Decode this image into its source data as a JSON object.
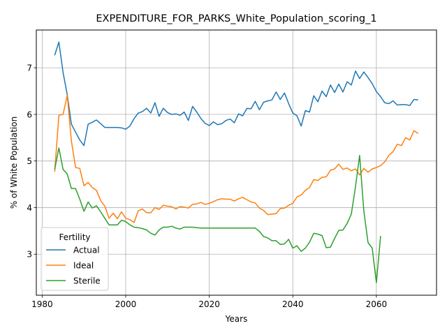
{
  "chart_data": {
    "type": "line",
    "title": "EXPENDITURE_FOR_PARKS_White_Population_scoring_1",
    "xlabel": "Years",
    "ylabel": "% of White Population",
    "xlim": [
      1978.6,
      2074.4
    ],
    "ylim": [
      2.12,
      7.81
    ],
    "x_ticks": [
      1980,
      2000,
      2020,
      2040,
      2060
    ],
    "y_ticks": [
      3,
      4,
      5,
      6,
      7
    ],
    "grid": true,
    "legend": {
      "title": "Fertility",
      "placement": "lower-left"
    },
    "series": [
      {
        "name": "Actual",
        "color": "#1f77b4",
        "x": [
          1983,
          1984,
          1985,
          1986,
          1987,
          1988,
          1989,
          1990,
          1991,
          1992,
          1993,
          1994,
          1995,
          1996,
          1997,
          1998,
          1999,
          2000,
          2001,
          2002,
          2003,
          2004,
          2005,
          2006,
          2007,
          2008,
          2009,
          2010,
          2011,
          2012,
          2013,
          2014,
          2015,
          2016,
          2017,
          2018,
          2019,
          2020,
          2021,
          2022,
          2023,
          2024,
          2025,
          2026,
          2027,
          2028,
          2029,
          2030,
          2031,
          2032,
          2033,
          2034,
          2035,
          2036,
          2037,
          2038,
          2039,
          2040,
          2041,
          2042,
          2043,
          2044,
          2045,
          2046,
          2047,
          2048,
          2049,
          2050,
          2051,
          2052,
          2053,
          2054,
          2055,
          2056,
          2057,
          2058,
          2059,
          2060,
          2061,
          2062,
          2063,
          2064,
          2065,
          2066,
          2067,
          2068,
          2069,
          2070
        ],
        "y": [
          7.27,
          7.55,
          6.9,
          6.42,
          5.79,
          5.62,
          5.45,
          5.33,
          5.79,
          5.83,
          5.88,
          5.8,
          5.72,
          5.72,
          5.72,
          5.72,
          5.71,
          5.68,
          5.75,
          5.91,
          6.03,
          6.06,
          6.13,
          6.03,
          6.25,
          5.96,
          6.13,
          6.04,
          6.0,
          6.01,
          5.98,
          6.05,
          5.87,
          6.17,
          6.05,
          5.91,
          5.81,
          5.76,
          5.84,
          5.78,
          5.8,
          5.87,
          5.9,
          5.82,
          6.01,
          5.97,
          6.13,
          6.12,
          6.28,
          6.1,
          6.26,
          6.29,
          6.31,
          6.48,
          6.32,
          6.46,
          6.23,
          6.03,
          5.97,
          5.75,
          6.08,
          6.05,
          6.4,
          6.27,
          6.5,
          6.38,
          6.63,
          6.47,
          6.65,
          6.48,
          6.7,
          6.63,
          6.93,
          6.77,
          6.91,
          6.79,
          6.66,
          6.49,
          6.38,
          6.25,
          6.23,
          6.29,
          6.2,
          6.21,
          6.21,
          6.19,
          6.32,
          6.31
        ]
      },
      {
        "name": "Ideal",
        "color": "#ff7f0e",
        "x": [
          1983,
          1984,
          1985,
          1986,
          1987,
          1988,
          1989,
          1990,
          1991,
          1992,
          1993,
          1994,
          1995,
          1996,
          1997,
          1998,
          1999,
          2000,
          2001,
          2002,
          2003,
          2004,
          2005,
          2006,
          2007,
          2008,
          2009,
          2010,
          2011,
          2012,
          2013,
          2014,
          2015,
          2016,
          2017,
          2018,
          2019,
          2020,
          2021,
          2022,
          2023,
          2024,
          2025,
          2026,
          2027,
          2028,
          2029,
          2030,
          2031,
          2032,
          2033,
          2034,
          2035,
          2036,
          2037,
          2038,
          2039,
          2040,
          2041,
          2042,
          2043,
          2044,
          2045,
          2046,
          2047,
          2048,
          2049,
          2050,
          2051,
          2052,
          2053,
          2054,
          2055,
          2056,
          2057,
          2058,
          2059,
          2060,
          2061,
          2062,
          2063,
          2064,
          2065,
          2066,
          2067,
          2068,
          2069,
          2070
        ],
        "y": [
          4.77,
          5.98,
          6.0,
          6.41,
          5.43,
          4.86,
          4.84,
          4.47,
          4.54,
          4.43,
          4.37,
          4.15,
          4.03,
          3.77,
          3.88,
          3.76,
          3.91,
          3.77,
          3.74,
          3.68,
          3.93,
          3.97,
          3.89,
          3.89,
          4.0,
          3.96,
          4.05,
          4.03,
          4.02,
          3.97,
          4.02,
          4.01,
          3.99,
          4.07,
          4.08,
          4.11,
          4.07,
          4.09,
          4.13,
          4.17,
          4.19,
          4.18,
          4.18,
          4.14,
          4.19,
          4.22,
          4.17,
          4.12,
          4.1,
          3.99,
          3.94,
          3.85,
          3.86,
          3.87,
          3.98,
          3.99,
          4.05,
          4.09,
          4.23,
          4.27,
          4.37,
          4.43,
          4.6,
          4.58,
          4.65,
          4.66,
          4.8,
          4.83,
          4.93,
          4.82,
          4.85,
          4.79,
          4.83,
          4.7,
          4.84,
          4.76,
          4.83,
          4.86,
          4.9,
          4.98,
          5.12,
          5.2,
          5.36,
          5.33,
          5.5,
          5.45,
          5.65,
          5.59
        ]
      },
      {
        "name": "Sterile",
        "color": "#2ca02c",
        "x": [
          1983,
          1984,
          1985,
          1986,
          1987,
          1988,
          1989,
          1990,
          1991,
          1992,
          1993,
          1994,
          1995,
          1996,
          1997,
          1998,
          1999,
          2000,
          2001,
          2002,
          2003,
          2004,
          2005,
          2006,
          2007,
          2008,
          2009,
          2010,
          2011,
          2012,
          2013,
          2014,
          2015,
          2016,
          2017,
          2018,
          2019,
          2020,
          2021,
          2022,
          2023,
          2024,
          2025,
          2026,
          2027,
          2028,
          2029,
          2030,
          2031,
          2032,
          2033,
          2034,
          2035,
          2036,
          2037,
          2038,
          2039,
          2040,
          2041,
          2042,
          2043,
          2044,
          2045,
          2046,
          2047,
          2048,
          2049,
          2050,
          2051,
          2052,
          2053,
          2054,
          2055,
          2056,
          2057,
          2058,
          2059,
          2060,
          2061
        ],
        "y": [
          4.82,
          5.28,
          4.82,
          4.72,
          4.41,
          4.41,
          4.18,
          3.92,
          4.12,
          3.99,
          4.04,
          3.91,
          3.77,
          3.63,
          3.63,
          3.63,
          3.73,
          3.7,
          3.63,
          3.58,
          3.57,
          3.55,
          3.52,
          3.45,
          3.41,
          3.52,
          3.58,
          3.58,
          3.6,
          3.56,
          3.54,
          3.58,
          3.58,
          3.58,
          3.57,
          3.56,
          3.56,
          3.56,
          3.56,
          3.56,
          3.56,
          3.56,
          3.56,
          3.56,
          3.56,
          3.56,
          3.56,
          3.56,
          3.56,
          3.49,
          3.38,
          3.35,
          3.29,
          3.29,
          3.21,
          3.22,
          3.32,
          3.13,
          3.18,
          3.06,
          3.13,
          3.26,
          3.45,
          3.43,
          3.4,
          3.14,
          3.15,
          3.34,
          3.51,
          3.52,
          3.66,
          3.86,
          4.45,
          5.12,
          3.93,
          3.25,
          3.13,
          2.39,
          3.39
        ]
      }
    ]
  }
}
